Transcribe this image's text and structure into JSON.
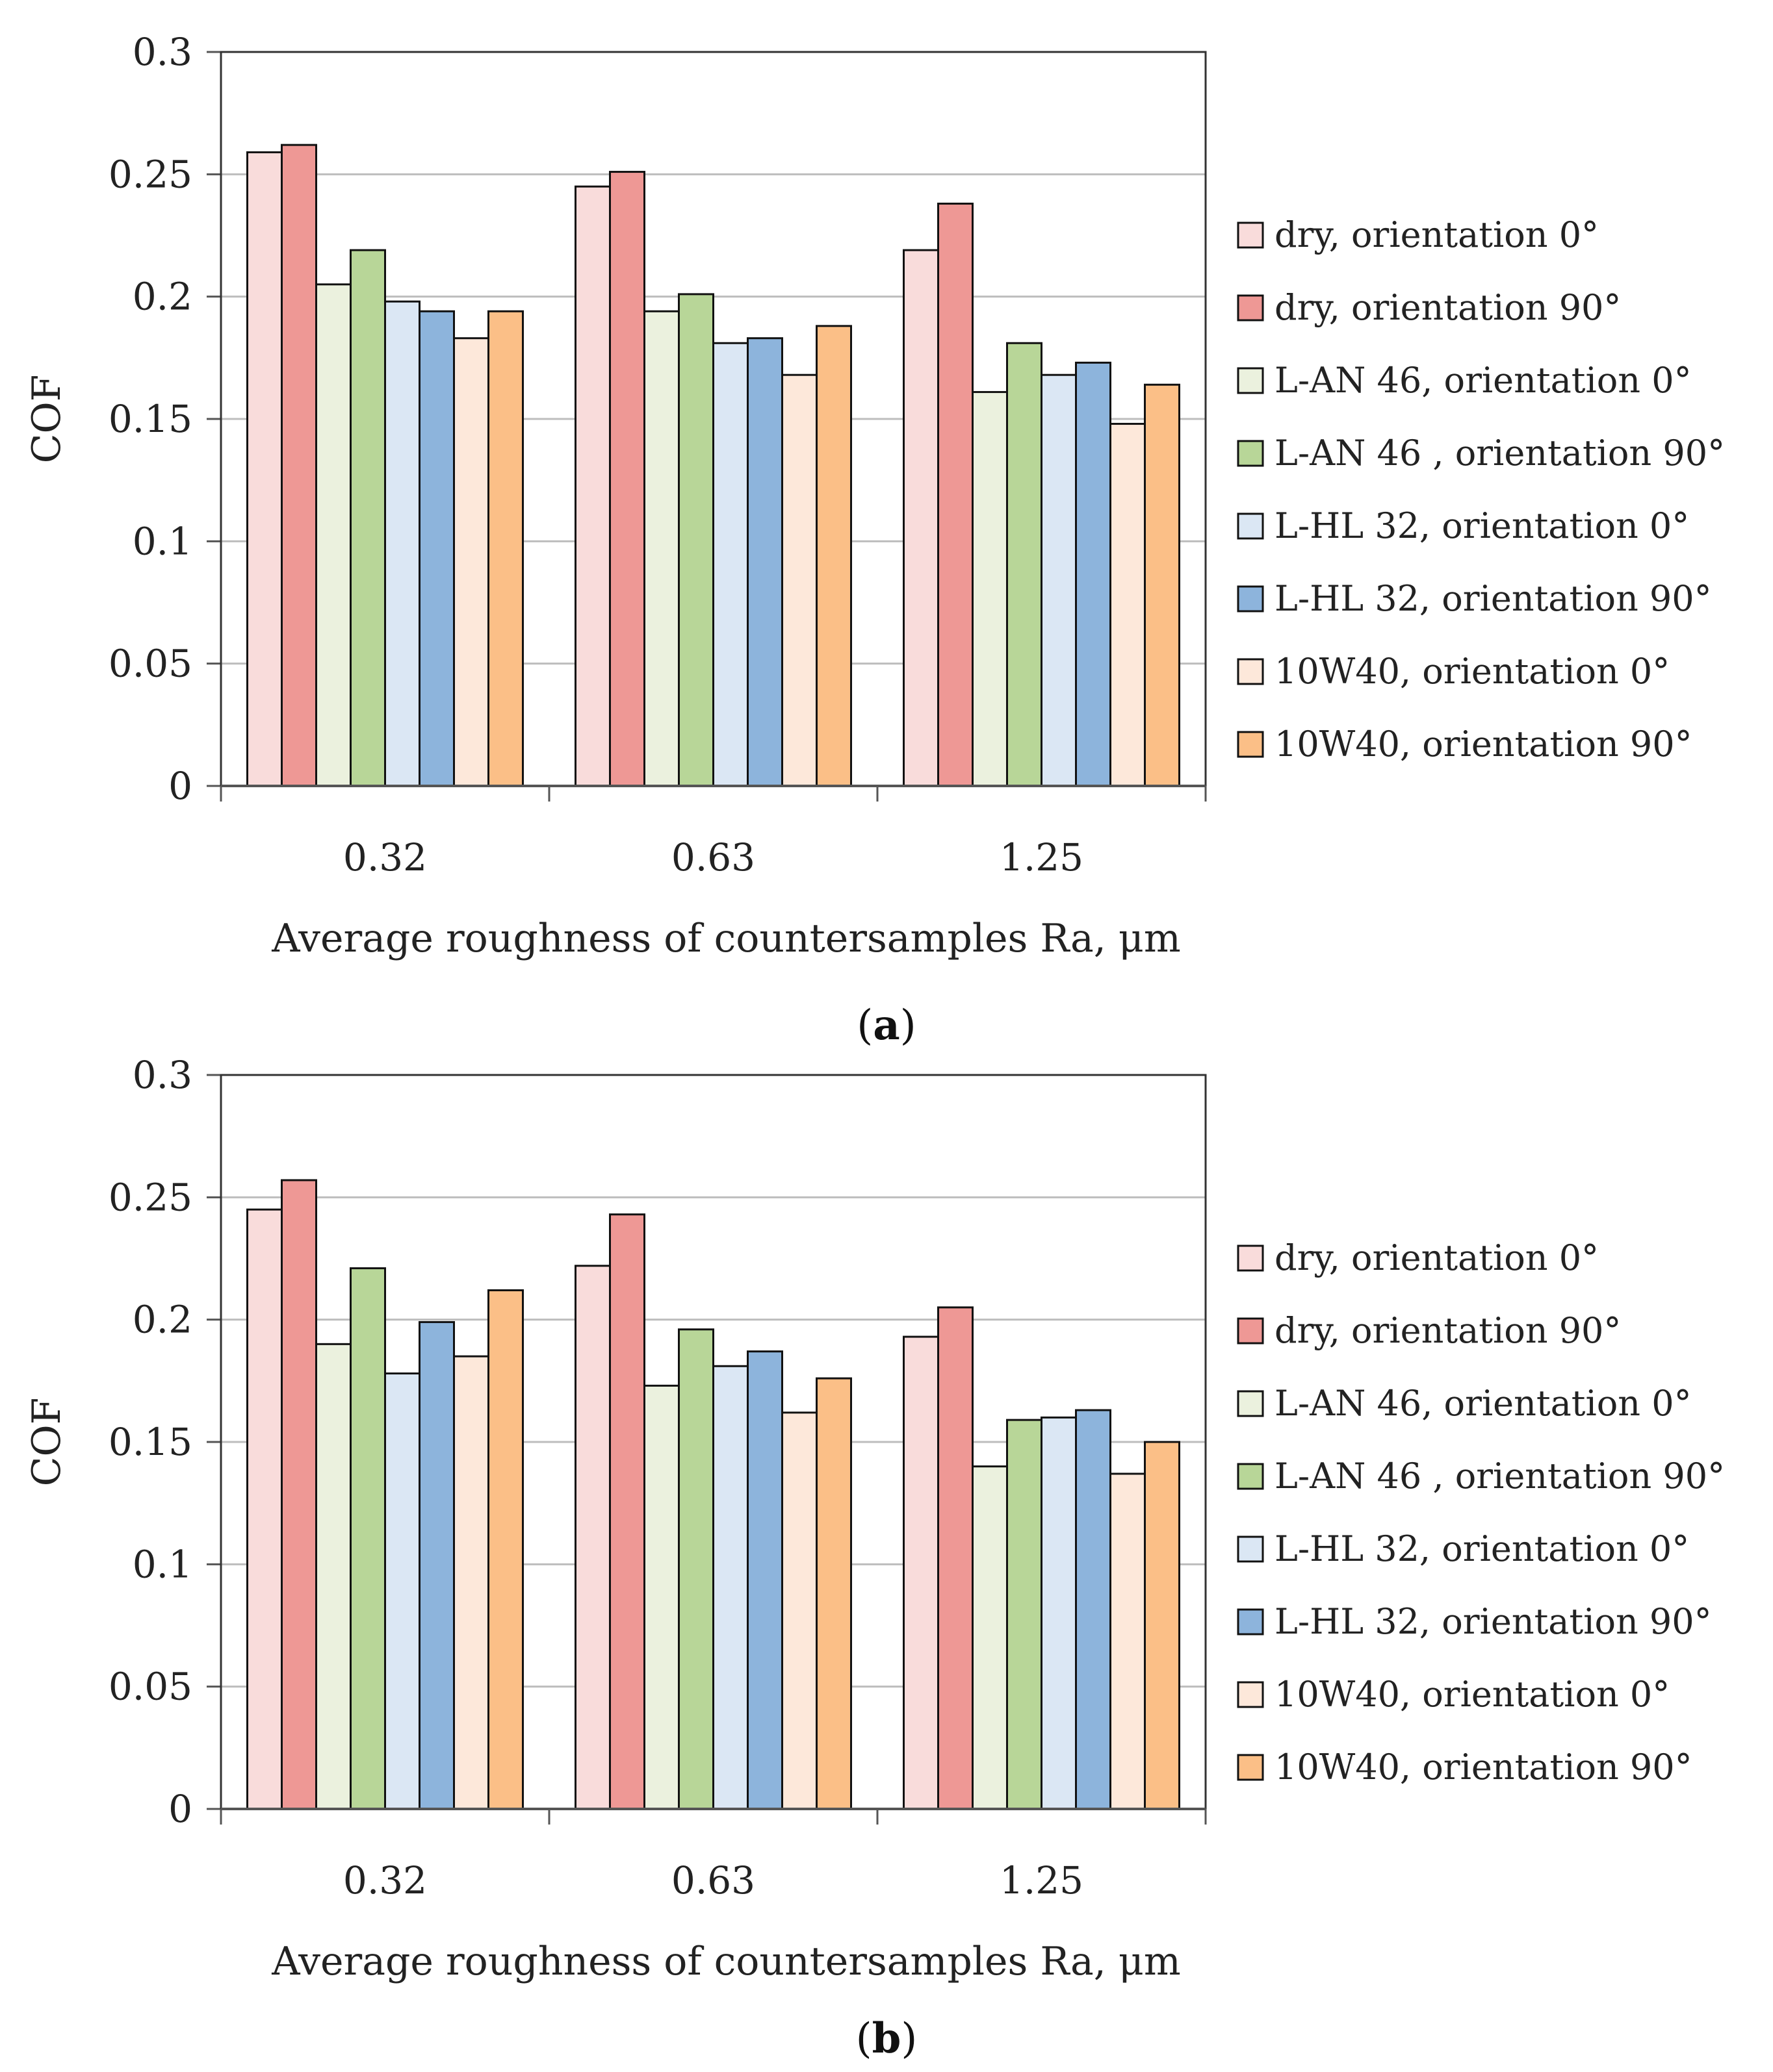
{
  "figure": {
    "captions": [
      "(a)",
      "(b)"
    ]
  },
  "colors": {
    "axis": "#555555",
    "grid": "#bdbdbd",
    "bar_stroke": "#111111",
    "text": "#222222"
  },
  "chart_data": [
    {
      "type": "bar",
      "panel": "a",
      "title": "",
      "caption": {
        "open": "(",
        "letter": "a",
        "close": ")"
      },
      "xlabel": "Average roughness of countersamples Ra, μm",
      "ylabel": "COF",
      "categories": [
        "0.32",
        "0.63",
        "1.25"
      ],
      "yticks": [
        "0",
        "0.05",
        "0.1",
        "0.15",
        "0.2",
        "0.25",
        "0.3"
      ],
      "ylim": [
        0,
        0.3
      ],
      "grid": true,
      "legend_position": "right",
      "series": [
        {
          "name": "dry, orientation 0°",
          "color": "#f9dcdb",
          "values": [
            0.259,
            0.245,
            0.219
          ]
        },
        {
          "name": "dry, orientation 90°",
          "color": "#ee9895",
          "values": [
            0.262,
            0.251,
            0.238
          ]
        },
        {
          "name": "L-AN 46, orientation 0°",
          "color": "#ebf1de",
          "values": [
            0.205,
            0.194,
            0.161
          ]
        },
        {
          "name": "L-AN 46 , orientation 90°",
          "color": "#b8d698",
          "values": [
            0.219,
            0.201,
            0.181
          ]
        },
        {
          "name": "L-HL 32, orientation 0°",
          "color": "#dbe7f4",
          "values": [
            0.198,
            0.181,
            0.168
          ]
        },
        {
          "name": "L-HL 32, orientation 90°",
          "color": "#8db4dc",
          "values": [
            0.194,
            0.183,
            0.173
          ]
        },
        {
          "name": "10W40, orientation 0°",
          "color": "#fde8da",
          "values": [
            0.183,
            0.168,
            0.148
          ]
        },
        {
          "name": "10W40, orientation 90°",
          "color": "#fbbf87",
          "values": [
            0.194,
            0.188,
            0.164
          ]
        }
      ]
    },
    {
      "type": "bar",
      "panel": "b",
      "title": "",
      "caption": {
        "open": "(",
        "letter": "b",
        "close": ")"
      },
      "xlabel": "Average roughness of countersamples Ra, μm",
      "ylabel": "COF",
      "categories": [
        "0.32",
        "0.63",
        "1.25"
      ],
      "yticks": [
        "0",
        "0.05",
        "0.1",
        "0.15",
        "0.2",
        "0.25",
        "0.3"
      ],
      "ylim": [
        0,
        0.3
      ],
      "grid": true,
      "legend_position": "right",
      "series": [
        {
          "name": "dry, orientation 0°",
          "color": "#f9dcdb",
          "values": [
            0.245,
            0.222,
            0.193
          ]
        },
        {
          "name": "dry, orientation 90°",
          "color": "#ee9895",
          "values": [
            0.257,
            0.243,
            0.205
          ]
        },
        {
          "name": "L-AN 46, orientation 0°",
          "color": "#ebf1de",
          "values": [
            0.19,
            0.173,
            0.14
          ]
        },
        {
          "name": "L-AN 46 , orientation 90°",
          "color": "#b8d698",
          "values": [
            0.221,
            0.196,
            0.159
          ]
        },
        {
          "name": "L-HL 32, orientation 0°",
          "color": "#dbe7f4",
          "values": [
            0.178,
            0.181,
            0.16
          ]
        },
        {
          "name": "L-HL 32, orientation 90°",
          "color": "#8db4dc",
          "values": [
            0.199,
            0.187,
            0.163
          ]
        },
        {
          "name": "10W40, orientation 0°",
          "color": "#fde8da",
          "values": [
            0.185,
            0.162,
            0.137
          ]
        },
        {
          "name": "10W40, orientation 90°",
          "color": "#fbbf87",
          "values": [
            0.212,
            0.176,
            0.15
          ]
        }
      ]
    }
  ]
}
